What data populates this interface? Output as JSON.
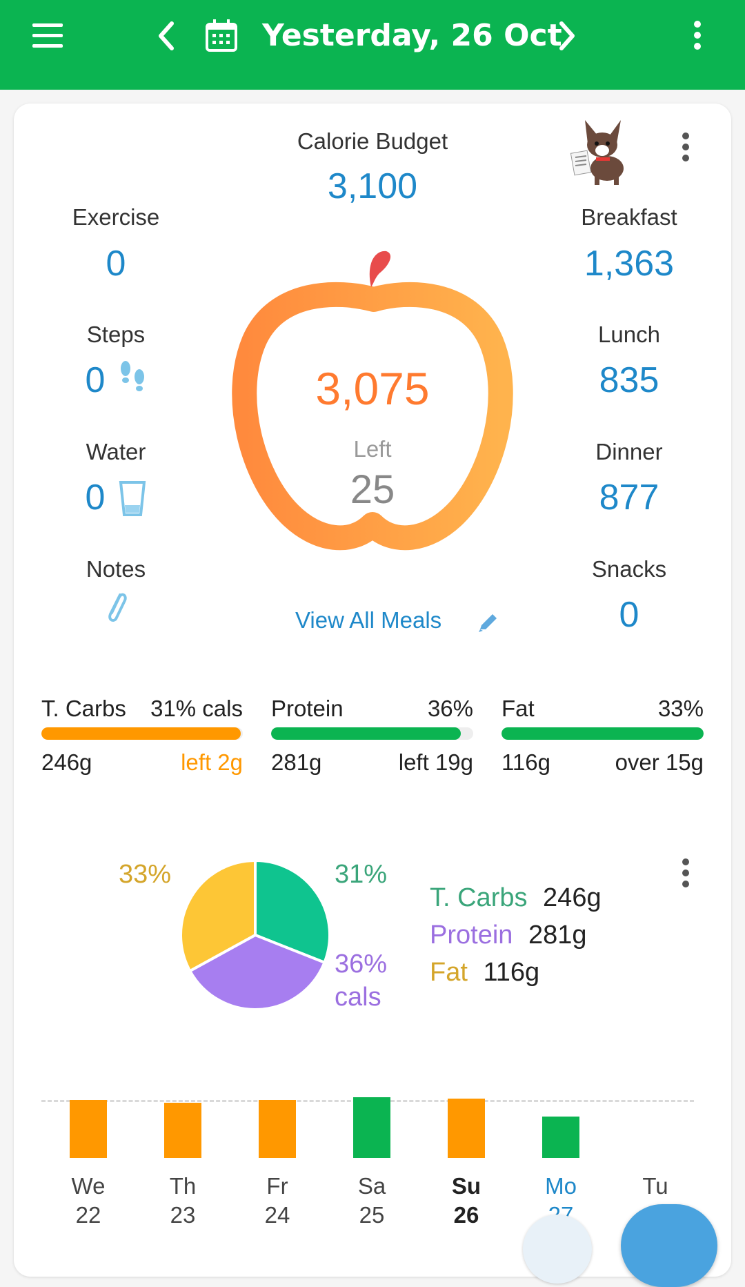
{
  "header": {
    "title": "Yesterday, 26 Oct"
  },
  "summary": {
    "budget_label": "Calorie Budget",
    "budget_value": "3,100",
    "eaten_value": "3,075",
    "left_label": "Left",
    "left_value": "25",
    "view_all_meals": "View All Meals"
  },
  "left_stats": [
    {
      "label": "Exercise",
      "value": "0"
    },
    {
      "label": "Steps",
      "value": "0"
    },
    {
      "label": "Water",
      "value": "0"
    },
    {
      "label": "Notes",
      "value": ""
    }
  ],
  "meals": [
    {
      "label": "Breakfast",
      "value": "1,363"
    },
    {
      "label": "Lunch",
      "value": "835"
    },
    {
      "label": "Dinner",
      "value": "877"
    },
    {
      "label": "Snacks",
      "value": "0"
    }
  ],
  "macros": [
    {
      "name": "T. Carbs",
      "pct": "31% cals",
      "amount": "246g",
      "status": "left 2g",
      "fill": 0.99,
      "color": "#ff9800",
      "status_color": "#ff9800"
    },
    {
      "name": "Protein",
      "pct": "36%",
      "amount": "281g",
      "status": "left 19g",
      "fill": 0.94,
      "color": "#0bb451",
      "status_color": "#222222"
    },
    {
      "name": "Fat",
      "pct": "33%",
      "amount": "116g",
      "status": "over 15g",
      "fill": 1.0,
      "color": "#0bb451",
      "status_color": "#222222"
    }
  ],
  "pie": {
    "labels": {
      "carbs_pct": "31%",
      "protein_pct": "36%",
      "protein_unit": "cals",
      "fat_pct": "33%"
    },
    "legend": [
      {
        "name": "T. Carbs",
        "amount": "246g",
        "color": "#3aa57a"
      },
      {
        "name": "Protein",
        "amount": "281g",
        "color": "#9b6fe0"
      },
      {
        "name": "Fat",
        "amount": "116g",
        "color": "#d4a52a"
      }
    ]
  },
  "chart_data": {
    "type": "pie",
    "categories": [
      "T. Carbs",
      "Protein",
      "Fat"
    ],
    "values": [
      31,
      36,
      33
    ],
    "colors": [
      "#0fc48f",
      "#a77ef0",
      "#fdc636"
    ]
  },
  "week": {
    "days": [
      {
        "day": "We",
        "date": "22",
        "status": "over"
      },
      {
        "day": "Th",
        "date": "23",
        "status": "over"
      },
      {
        "day": "Fr",
        "date": "24",
        "status": "over"
      },
      {
        "day": "Sa",
        "date": "25",
        "status": "under"
      },
      {
        "day": "Su",
        "date": "26",
        "status": "over"
      },
      {
        "day": "Mo",
        "date": "27",
        "status": "under"
      },
      {
        "day": "Tu",
        "date": "",
        "status": "none"
      }
    ],
    "colors": {
      "over": "#ff9800",
      "under": "#0bb451"
    }
  }
}
